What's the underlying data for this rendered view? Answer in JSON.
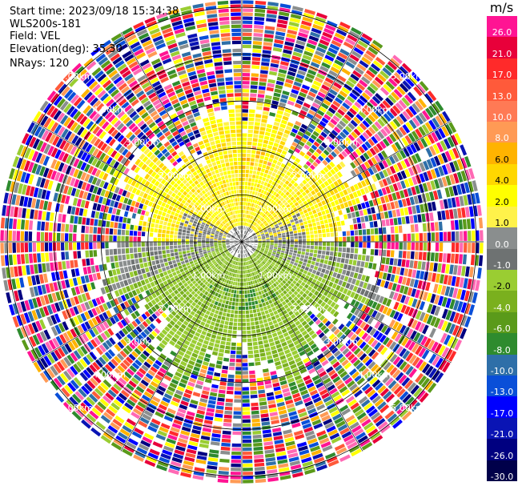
{
  "header": {
    "start_time": "Start time: 2023/09/18 15:34:38",
    "site": "WLS200s-181",
    "field": "Field: VEL",
    "elevation": "Elevation(deg): 35.30",
    "nrays": "NRays: 120"
  },
  "chart_data": {
    "type": "heatmap",
    "projection": "polar PPI (plan position indicator)",
    "field": "VEL",
    "n_rays": 120,
    "range_rings_km": [
      1,
      2,
      3,
      4,
      5
    ],
    "range_labels": [
      "1.00km",
      "1.00km",
      "1.00km",
      "1.00km",
      "2.00km",
      "2.00km",
      "2.00km",
      "2.00km",
      "3.00km",
      "3.00km",
      "3.00km",
      "3.00km",
      "4.00km",
      "4.00km",
      "4.00km",
      "4.00km",
      "5.00km",
      "5.00km",
      "5.00km",
      "5.00km"
    ],
    "colorbar": {
      "unit": "m/s",
      "tick_labels": [
        "26.0",
        "21.0",
        "17.0",
        "13.0",
        "10.0",
        "8.0",
        "6.0",
        "4.0",
        "2.0",
        "1.0",
        "0.0",
        "-1.0",
        "-2.0",
        "-4.0",
        "-6.0",
        "-8.0",
        "-10.0",
        "-13.0",
        "-17.0",
        "-21.0",
        "-26.0",
        "-30.0"
      ],
      "colors": [
        "#ff1493",
        "#e8003a",
        "#ff2a2a",
        "#ff5a3a",
        "#ff7a55",
        "#ff9a55",
        "#ffb300",
        "#ffd700",
        "#ffff00",
        "#fff24a",
        "#8a8e8e",
        "#6e7272",
        "#9acd32",
        "#7ab01e",
        "#5a9a1a",
        "#2e8b2e",
        "#2e6fa8",
        "#0a4fd8",
        "#0000ff",
        "#0a14b4",
        "#000080",
        "#00004a"
      ]
    },
    "near_range_pattern": {
      "north_half": "positive velocities (yellow, +2 to +6 m/s)",
      "south_half": "negative velocities (green/grey, 0 to -6 m/s)",
      "far_range": "noise (multicolor)"
    }
  }
}
